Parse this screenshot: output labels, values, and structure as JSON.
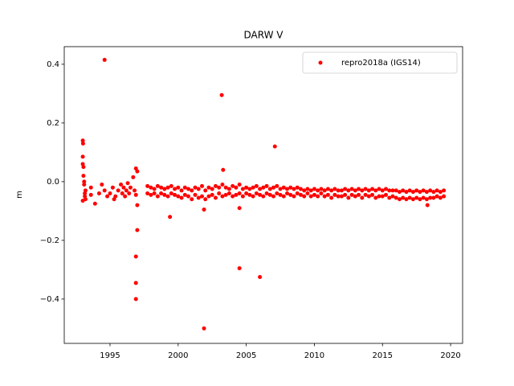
{
  "chart_data": {
    "type": "scatter",
    "title": "DARW V",
    "y_label": "m",
    "xlim": [
      1991.64,
      2020.88
    ],
    "ylim": [
      -0.551,
      0.46
    ],
    "xticks": [
      1995,
      2000,
      2005,
      2010,
      2015,
      2020
    ],
    "yticks": [
      {
        "value": -0.4,
        "label": "−0.4"
      },
      {
        "value": -0.2,
        "label": "−0.2"
      },
      {
        "value": 0.0,
        "label": "0.0"
      },
      0.2,
      0.4
    ],
    "legend": "upper right",
    "series": [
      {
        "name": "repro2018a (IGS14)",
        "color": "#ff0000",
        "x": [
          1994.6,
          2003.2,
          2007.1,
          2003.3,
          1993.0,
          1993.02,
          1993.0,
          1996.9,
          1997.0,
          1996.7,
          1997.0,
          1997.0,
          1996.9,
          1996.9,
          1996.9,
          1999.4,
          2001.9,
          2004.5,
          2004.5,
          2006.0,
          2001.9,
          1993.9,
          1995.3,
          1993.0,
          1993.05,
          1993.1,
          1993.15,
          1993.2,
          1993.0,
          1993.1,
          1993.2,
          1993.05,
          1993.15,
          1993.6,
          1993.6,
          1994.2,
          1994.4,
          1994.6,
          1994.8,
          1995.0,
          1995.2,
          1995.4,
          1995.6,
          1995.8,
          1995.9,
          1996.0,
          1996.1,
          1996.2,
          1996.3,
          1996.4,
          1996.5,
          1996.8,
          1996.9,
          1997.75,
          1997.75,
          1998.0,
          1998.0,
          1998.25,
          1998.25,
          1998.5,
          1998.5,
          1998.75,
          1998.75,
          1999.0,
          1999.0,
          1999.25,
          1999.25,
          1999.5,
          1999.5,
          1999.75,
          1999.75,
          2000.0,
          2000.0,
          2000.25,
          2000.25,
          2000.5,
          2000.5,
          2000.75,
          2000.75,
          2001.0,
          2001.0,
          2001.25,
          2001.25,
          2001.5,
          2001.5,
          2001.75,
          2001.75,
          2002.0,
          2002.0,
          2002.25,
          2002.25,
          2002.5,
          2002.5,
          2002.75,
          2002.75,
          2003.0,
          2003.0,
          2003.25,
          2003.25,
          2003.5,
          2003.5,
          2003.75,
          2003.75,
          2004.0,
          2004.0,
          2004.25,
          2004.25,
          2004.5,
          2004.5,
          2004.75,
          2004.75,
          2005.0,
          2005.0,
          2005.25,
          2005.25,
          2005.5,
          2005.5,
          2005.75,
          2005.75,
          2006.0,
          2006.0,
          2006.25,
          2006.25,
          2006.5,
          2006.5,
          2006.75,
          2006.75,
          2007.0,
          2007.0,
          2007.25,
          2007.25,
          2007.5,
          2007.5,
          2007.75,
          2007.75,
          2008.0,
          2008.0,
          2008.25,
          2008.25,
          2008.5,
          2008.5,
          2008.75,
          2008.75,
          2009.0,
          2009.0,
          2009.25,
          2009.25,
          2009.5,
          2009.5,
          2009.75,
          2009.75,
          2010.0,
          2010.0,
          2010.25,
          2010.25,
          2010.5,
          2010.5,
          2010.75,
          2010.75,
          2011.0,
          2011.0,
          2011.25,
          2011.25,
          2011.5,
          2011.5,
          2011.75,
          2011.75,
          2012.0,
          2012.0,
          2012.25,
          2012.25,
          2012.5,
          2012.5,
          2012.75,
          2012.75,
          2013.0,
          2013.0,
          2013.25,
          2013.25,
          2013.5,
          2013.5,
          2013.75,
          2013.75,
          2014.0,
          2014.0,
          2014.25,
          2014.25,
          2014.5,
          2014.5,
          2014.75,
          2014.75,
          2015.0,
          2015.0,
          2015.25,
          2015.25,
          2015.5,
          2015.5,
          2015.75,
          2015.75,
          2016.0,
          2016.0,
          2016.25,
          2016.25,
          2016.5,
          2016.5,
          2016.75,
          2016.75,
          2017.0,
          2017.0,
          2017.25,
          2017.25,
          2017.5,
          2017.5,
          2017.75,
          2017.75,
          2018.0,
          2018.0,
          2018.25,
          2018.25,
          2018.5,
          2018.5,
          2018.75,
          2018.75,
          2019.0,
          2019.0,
          2019.25,
          2019.25,
          2019.5,
          2019.5,
          2018.3
        ],
        "values": [
          0.415,
          0.295,
          0.12,
          0.04,
          0.14,
          0.13,
          0.085,
          0.045,
          0.035,
          0.015,
          -0.08,
          -0.165,
          -0.255,
          -0.345,
          -0.4,
          -0.12,
          -0.095,
          -0.09,
          -0.295,
          -0.325,
          -0.5,
          -0.075,
          -0.06,
          0.06,
          0.02,
          -0.01,
          -0.04,
          -0.06,
          -0.065,
          0.0,
          -0.03,
          0.05,
          -0.05,
          -0.02,
          -0.045,
          -0.04,
          -0.01,
          -0.03,
          -0.05,
          -0.04,
          -0.02,
          -0.05,
          -0.03,
          -0.01,
          -0.04,
          -0.02,
          -0.05,
          -0.03,
          -0.005,
          -0.04,
          -0.02,
          -0.03,
          -0.045,
          -0.015,
          -0.04,
          -0.02,
          -0.045,
          -0.025,
          -0.04,
          -0.015,
          -0.05,
          -0.02,
          -0.04,
          -0.025,
          -0.045,
          -0.02,
          -0.05,
          -0.015,
          -0.04,
          -0.025,
          -0.045,
          -0.02,
          -0.05,
          -0.03,
          -0.055,
          -0.02,
          -0.045,
          -0.025,
          -0.05,
          -0.03,
          -0.06,
          -0.02,
          -0.045,
          -0.025,
          -0.055,
          -0.015,
          -0.05,
          -0.03,
          -0.06,
          -0.02,
          -0.05,
          -0.025,
          -0.045,
          -0.015,
          -0.055,
          -0.02,
          -0.04,
          -0.01,
          -0.05,
          -0.02,
          -0.045,
          -0.025,
          -0.04,
          -0.015,
          -0.05,
          -0.02,
          -0.045,
          -0.01,
          -0.04,
          -0.025,
          -0.05,
          -0.02,
          -0.04,
          -0.025,
          -0.045,
          -0.02,
          -0.05,
          -0.015,
          -0.04,
          -0.025,
          -0.045,
          -0.02,
          -0.05,
          -0.015,
          -0.04,
          -0.025,
          -0.045,
          -0.02,
          -0.05,
          -0.015,
          -0.04,
          -0.025,
          -0.045,
          -0.02,
          -0.05,
          -0.025,
          -0.04,
          -0.02,
          -0.045,
          -0.025,
          -0.05,
          -0.02,
          -0.04,
          -0.025,
          -0.045,
          -0.03,
          -0.05,
          -0.025,
          -0.04,
          -0.03,
          -0.05,
          -0.025,
          -0.045,
          -0.03,
          -0.05,
          -0.025,
          -0.04,
          -0.03,
          -0.05,
          -0.025,
          -0.045,
          -0.03,
          -0.055,
          -0.025,
          -0.045,
          -0.03,
          -0.05,
          -0.03,
          -0.05,
          -0.025,
          -0.045,
          -0.03,
          -0.055,
          -0.025,
          -0.045,
          -0.03,
          -0.05,
          -0.025,
          -0.045,
          -0.03,
          -0.055,
          -0.025,
          -0.045,
          -0.03,
          -0.05,
          -0.025,
          -0.045,
          -0.03,
          -0.055,
          -0.025,
          -0.05,
          -0.03,
          -0.05,
          -0.025,
          -0.045,
          -0.03,
          -0.055,
          -0.03,
          -0.05,
          -0.03,
          -0.055,
          -0.035,
          -0.06,
          -0.03,
          -0.055,
          -0.035,
          -0.06,
          -0.03,
          -0.055,
          -0.035,
          -0.06,
          -0.03,
          -0.055,
          -0.035,
          -0.06,
          -0.03,
          -0.055,
          -0.035,
          -0.06,
          -0.03,
          -0.055,
          -0.035,
          -0.055,
          -0.03,
          -0.05,
          -0.035,
          -0.055,
          -0.03,
          -0.05,
          -0.08
        ]
      }
    ]
  }
}
